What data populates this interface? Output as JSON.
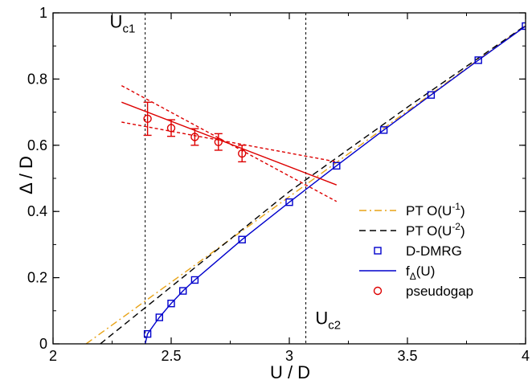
{
  "chart_data": {
    "type": "line",
    "xlabel": "U / D",
    "ylabel": "Δ / D",
    "xlim": [
      2,
      4
    ],
    "ylim": [
      0,
      1
    ],
    "xticks": [
      {
        "v": 2,
        "label": "2"
      },
      {
        "v": 2.5,
        "label": "2.5"
      },
      {
        "v": 3,
        "label": "3"
      },
      {
        "v": 3.5,
        "label": "3.5"
      },
      {
        "v": 4,
        "label": "4"
      }
    ],
    "yticks": [
      {
        "v": 0,
        "label": "0"
      },
      {
        "v": 0.2,
        "label": "0.2"
      },
      {
        "v": 0.4,
        "label": "0.4"
      },
      {
        "v": 0.6,
        "label": "0.6"
      },
      {
        "v": 0.8,
        "label": "0.8"
      },
      {
        "v": 1,
        "label": "1"
      }
    ],
    "vlines": [
      {
        "x": 2.39,
        "label_main": "U",
        "label_sub": "c1",
        "label_x": 2.24,
        "label_y": 0.955
      },
      {
        "x": 3.07,
        "label_main": "U",
        "label_sub": "c2",
        "label_x": 3.11,
        "label_y": 0.06
      }
    ],
    "legend": {
      "position": "bottom-right",
      "entries": [
        {
          "key": "pt1",
          "text": "PT O(U",
          "sup": "-1",
          "tail": ")"
        },
        {
          "key": "pt2",
          "text": "PT O(U",
          "sup": "-2",
          "tail": ")"
        },
        {
          "key": "dmrg",
          "text": "D-DMRG"
        },
        {
          "key": "fit",
          "text": "f",
          "sub": "Δ",
          "tail": "(U)"
        },
        {
          "key": "pg",
          "text": "pseudogap"
        }
      ]
    },
    "series": [
      {
        "name": "PT O(U^-1)",
        "kind": "line",
        "color": "#e8a317",
        "dash": "dashdot",
        "points": [
          [
            2.14,
            0
          ],
          [
            4.0,
            0.962
          ]
        ]
      },
      {
        "name": "PT O(U^-2)",
        "kind": "line",
        "color": "#000000",
        "dash": "dash",
        "points": [
          [
            2.2,
            0
          ],
          [
            3.0,
            0.46
          ],
          [
            3.5,
            0.715
          ],
          [
            4.0,
            0.962
          ]
        ]
      },
      {
        "name": "D-DMRG",
        "kind": "markers",
        "marker": "square",
        "color": "#0000cc",
        "points": [
          [
            2.4,
            0.03
          ],
          [
            2.45,
            0.08
          ],
          [
            2.5,
            0.122
          ],
          [
            2.55,
            0.16
          ],
          [
            2.6,
            0.193
          ],
          [
            2.8,
            0.315
          ],
          [
            3.0,
            0.428
          ],
          [
            3.2,
            0.538
          ],
          [
            3.4,
            0.646
          ],
          [
            3.6,
            0.752
          ],
          [
            3.8,
            0.857
          ],
          [
            4.0,
            0.96
          ]
        ]
      },
      {
        "name": "f_Δ(U)",
        "kind": "line",
        "color": "#0000cc",
        "dash": "solid",
        "points": [
          [
            2.39,
            0
          ],
          [
            2.4,
            0.03
          ],
          [
            2.45,
            0.08
          ],
          [
            2.5,
            0.122
          ],
          [
            2.55,
            0.16
          ],
          [
            2.6,
            0.193
          ],
          [
            2.8,
            0.315
          ],
          [
            3.0,
            0.428
          ],
          [
            3.2,
            0.538
          ],
          [
            3.4,
            0.646
          ],
          [
            3.6,
            0.752
          ],
          [
            3.8,
            0.857
          ],
          [
            4.0,
            0.96
          ]
        ]
      },
      {
        "name": "pseudogap",
        "kind": "markers",
        "marker": "circle",
        "color": "#dd0000",
        "points": [
          [
            2.4,
            0.68,
            0.05
          ],
          [
            2.5,
            0.652,
            0.025
          ],
          [
            2.6,
            0.625,
            0.025
          ],
          [
            2.7,
            0.61,
            0.025
          ],
          [
            2.8,
            0.575,
            0.025
          ]
        ]
      },
      {
        "name": "pseudogap fit",
        "kind": "line",
        "color": "#dd0000",
        "dash": "solid",
        "points": [
          [
            2.29,
            0.73
          ],
          [
            3.2,
            0.48
          ]
        ]
      },
      {
        "name": "pseudogap fit bound upper",
        "kind": "line",
        "color": "#dd0000",
        "dash": "shortdash",
        "points": [
          [
            2.29,
            0.67
          ],
          [
            3.2,
            0.55
          ]
        ]
      },
      {
        "name": "pseudogap fit bound lower",
        "kind": "line",
        "color": "#dd0000",
        "dash": "shortdash",
        "points": [
          [
            2.29,
            0.78
          ],
          [
            3.2,
            0.43
          ]
        ]
      }
    ]
  }
}
